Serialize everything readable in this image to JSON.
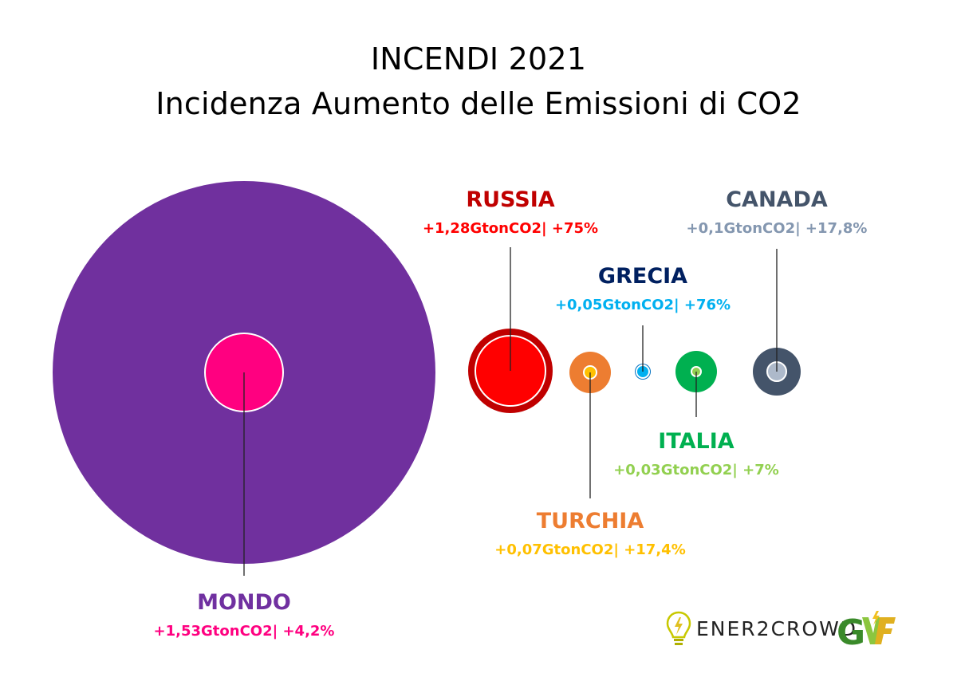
{
  "chart_data": {
    "type": "bubble",
    "title": "INCENDI 2021",
    "subtitle": "Incidenza Aumento delle Emissioni di CO2",
    "items": [
      {
        "name": "MONDO",
        "value_label": "+1,53GtonCO2| +4,2%",
        "total_gton": 1.53,
        "pct": 4.2,
        "outer_color": "#70309e",
        "inner_color": "#ff0080",
        "name_color": "#7030a0",
        "value_color": "#ff0080"
      },
      {
        "name": "RUSSIA",
        "value_label": "+1,28GtonCO2| +75%",
        "total_gton": 1.28,
        "pct": 75,
        "outer_color": "#c00000",
        "inner_color": "#ff0000",
        "name_color": "#c00000",
        "value_color": "#ff0000"
      },
      {
        "name": "TURCHIA",
        "value_label": "+0,07GtonCO2| +17,4%",
        "total_gton": 0.07,
        "pct": 17.4,
        "outer_color": "#ed7d31",
        "inner_color": "#ffc000",
        "name_color": "#ed7d31",
        "value_color": "#ffc000"
      },
      {
        "name": "GRECIA",
        "value_label": "+0,05GtonCO2| +76%",
        "total_gton": 0.05,
        "pct": 76,
        "outer_color": "#0070c0",
        "inner_color": "#00b0f0",
        "name_color": "#002060",
        "value_color": "#00b0f0"
      },
      {
        "name": "ITALIA",
        "value_label": "+0,03GtonCO2| +7%",
        "total_gton": 0.03,
        "pct": 7,
        "outer_color": "#00b050",
        "inner_color": "#92d050",
        "name_color": "#00b050",
        "value_color": "#92d050"
      },
      {
        "name": "CANADA",
        "value_label": "+0,1GtonCO2| +17,8%",
        "total_gton": 0.1,
        "pct": 17.8,
        "outer_color": "#44546a",
        "inner_color": "#adb9ca",
        "name_color": "#44546a",
        "value_color": "#8497b0"
      }
    ]
  },
  "logos": {
    "ener2crowd": "ENER2CROWD",
    "gvf_mark": "GVF"
  }
}
